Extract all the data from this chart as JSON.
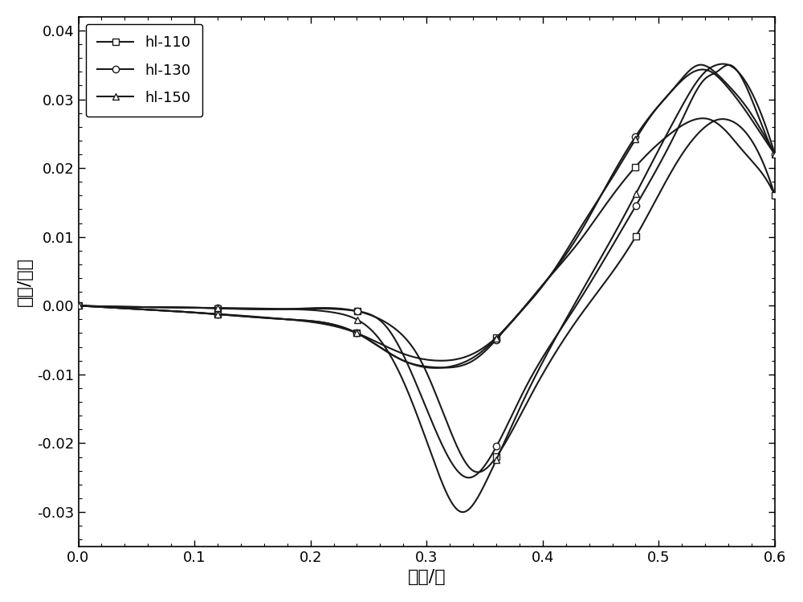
{
  "title": "",
  "xlabel": "电压/伏",
  "ylabel": "电流/安培",
  "xlim": [
    0.0,
    0.6
  ],
  "ylim": [
    -0.035,
    0.042
  ],
  "xticks": [
    0.0,
    0.1,
    0.2,
    0.3,
    0.4,
    0.5,
    0.6
  ],
  "yticks": [
    -0.03,
    -0.02,
    -0.01,
    0.0,
    0.01,
    0.02,
    0.03,
    0.04
  ],
  "legend_labels": [
    "hl-110",
    "hl-130",
    "hl-150"
  ],
  "legend_markers": [
    "s",
    "o",
    "^"
  ],
  "line_color": "#1a1a1a",
  "background_color": "#ffffff",
  "linewidth": 1.5,
  "markersize": 6,
  "font_size": 16
}
